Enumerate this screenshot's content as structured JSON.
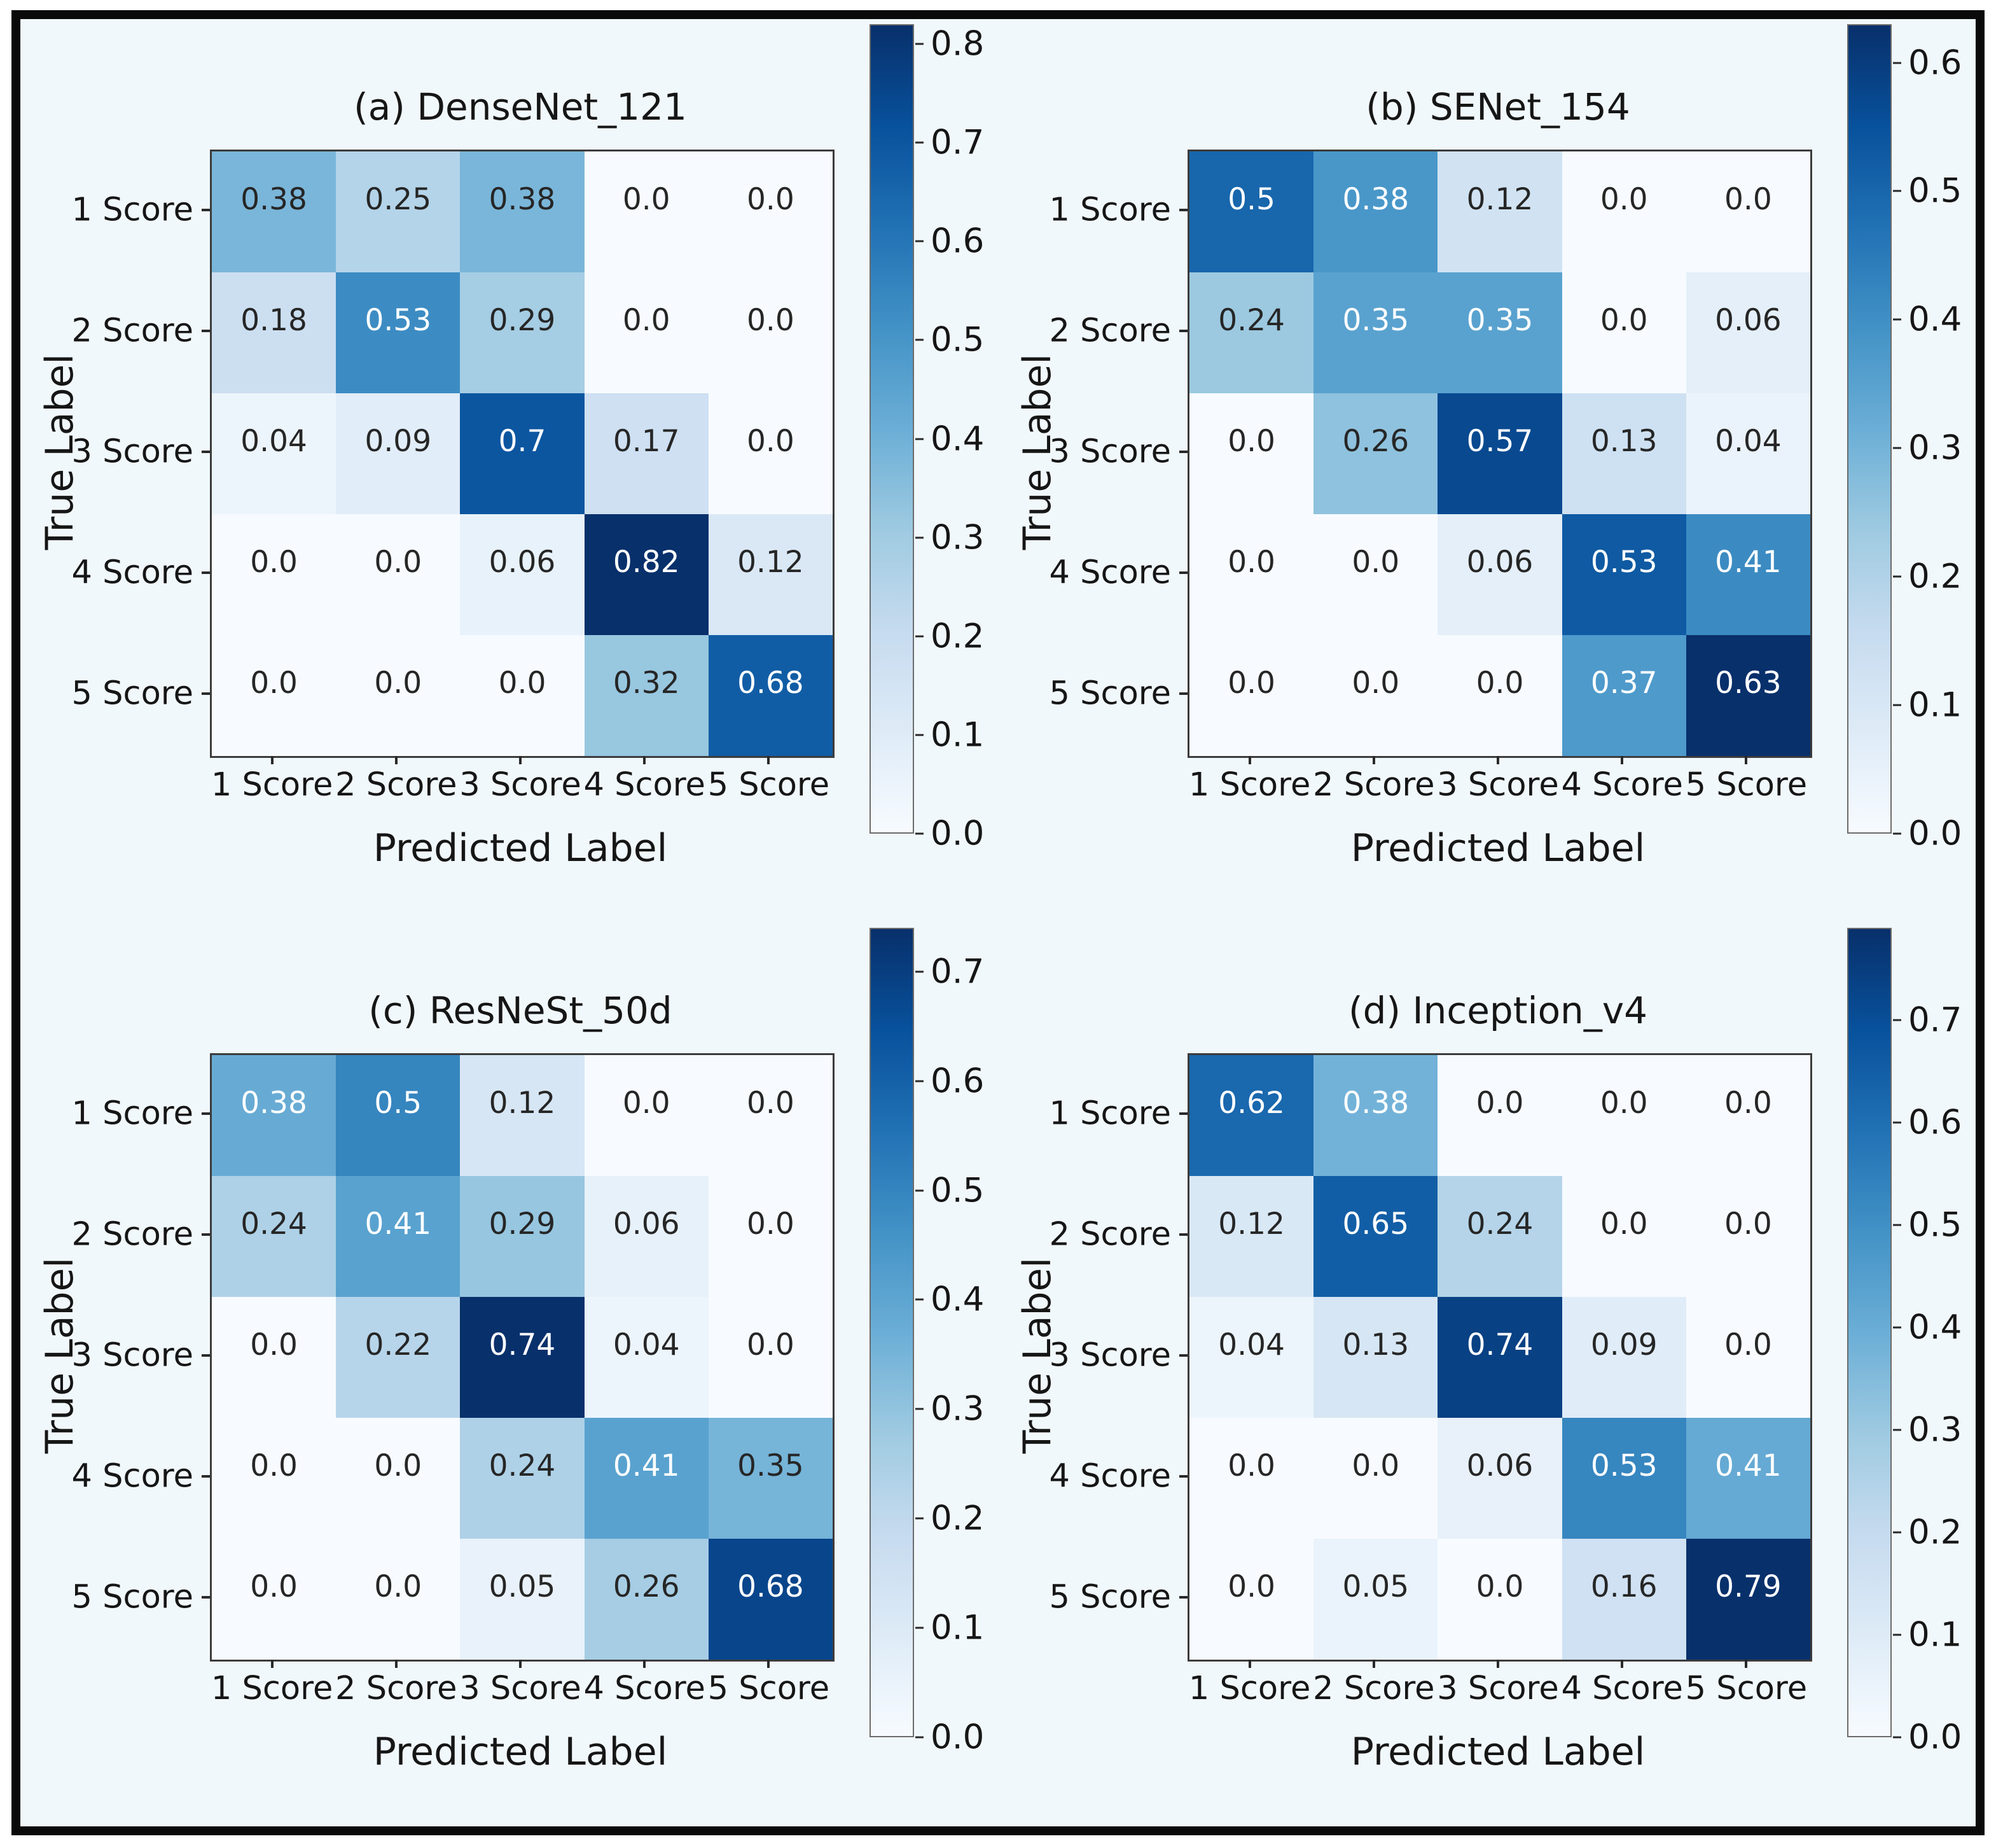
{
  "figure": {
    "background": "#f1f8fc",
    "outer_background": "#ffffff",
    "frame_color": "#0a0a0a",
    "colormap": {
      "name": "Blues",
      "anchors": [
        "#f7fbff",
        "#deebf7",
        "#c6dbef",
        "#9ecae1",
        "#6baed6",
        "#4292c6",
        "#2171b5",
        "#08519c",
        "#08306b"
      ]
    },
    "annotation_text_dark": "#262626",
    "annotation_text_light": "#ffffff"
  },
  "axes": {
    "xlabel": "Predicted Label",
    "ylabel": "True Label",
    "x_tick_labels": [
      "1 Score",
      "2 Score",
      "3 Score",
      "4 Score",
      "5 Score"
    ],
    "y_tick_labels": [
      "1 Score",
      "2 Score",
      "3 Score",
      "4 Score",
      "5 Score"
    ]
  },
  "chart_data": [
    {
      "type": "heatmap",
      "panel": "a",
      "title": "(a) DenseNet_121",
      "xlabel": "Predicted Label",
      "ylabel": "True Label",
      "categories_x": [
        "1 Score",
        "2 Score",
        "3 Score",
        "4 Score",
        "5 Score"
      ],
      "categories_y": [
        "1 Score",
        "2 Score",
        "3 Score",
        "4 Score",
        "5 Score"
      ],
      "values": [
        [
          0.38,
          0.25,
          0.38,
          0.0,
          0.0
        ],
        [
          0.18,
          0.53,
          0.29,
          0.0,
          0.0
        ],
        [
          0.04,
          0.09,
          0.7,
          0.17,
          0.0
        ],
        [
          0.0,
          0.0,
          0.06,
          0.82,
          0.12
        ],
        [
          0.0,
          0.0,
          0.0,
          0.32,
          0.68
        ]
      ],
      "vmin": 0.0,
      "vmax": 0.82,
      "colorbar_ticks": [
        0.0,
        0.1,
        0.2,
        0.3,
        0.4,
        0.5,
        0.6,
        0.7,
        0.8
      ],
      "colorbar_position": "right",
      "grid": false
    },
    {
      "type": "heatmap",
      "panel": "b",
      "title": "(b) SENet_154",
      "xlabel": "Predicted Label",
      "ylabel": "True Label",
      "categories_x": [
        "1 Score",
        "2 Score",
        "3 Score",
        "4 Score",
        "5 Score"
      ],
      "categories_y": [
        "1 Score",
        "2 Score",
        "3 Score",
        "4 Score",
        "5 Score"
      ],
      "values": [
        [
          0.5,
          0.38,
          0.12,
          0.0,
          0.0
        ],
        [
          0.24,
          0.35,
          0.35,
          0.0,
          0.06
        ],
        [
          0.0,
          0.26,
          0.57,
          0.13,
          0.04
        ],
        [
          0.0,
          0.0,
          0.06,
          0.53,
          0.41
        ],
        [
          0.0,
          0.0,
          0.0,
          0.37,
          0.63
        ]
      ],
      "vmin": 0.0,
      "vmax": 0.63,
      "colorbar_ticks": [
        0.0,
        0.1,
        0.2,
        0.3,
        0.4,
        0.5,
        0.6
      ],
      "colorbar_position": "right",
      "grid": false
    },
    {
      "type": "heatmap",
      "panel": "c",
      "title": "(c) ResNeSt_50d",
      "xlabel": "Predicted Label",
      "ylabel": "True Label",
      "categories_x": [
        "1 Score",
        "2 Score",
        "3 Score",
        "4 Score",
        "5 Score"
      ],
      "categories_y": [
        "1 Score",
        "2 Score",
        "3 Score",
        "4 Score",
        "5 Score"
      ],
      "values": [
        [
          0.38,
          0.5,
          0.12,
          0.0,
          0.0
        ],
        [
          0.24,
          0.41,
          0.29,
          0.06,
          0.0
        ],
        [
          0.0,
          0.22,
          0.74,
          0.04,
          0.0
        ],
        [
          0.0,
          0.0,
          0.24,
          0.41,
          0.35
        ],
        [
          0.0,
          0.0,
          0.05,
          0.26,
          0.68
        ]
      ],
      "vmin": 0.0,
      "vmax": 0.74,
      "colorbar_ticks": [
        0.0,
        0.1,
        0.2,
        0.3,
        0.4,
        0.5,
        0.6,
        0.7
      ],
      "colorbar_position": "right",
      "grid": false
    },
    {
      "type": "heatmap",
      "panel": "d",
      "title": "(d) Inception_v4",
      "xlabel": "Predicted Label",
      "ylabel": "True Label",
      "categories_x": [
        "1 Score",
        "2 Score",
        "3 Score",
        "4 Score",
        "5 Score"
      ],
      "categories_y": [
        "1 Score",
        "2 Score",
        "3 Score",
        "4 Score",
        "5 Score"
      ],
      "values": [
        [
          0.62,
          0.38,
          0.0,
          0.0,
          0.0
        ],
        [
          0.12,
          0.65,
          0.24,
          0.0,
          0.0
        ],
        [
          0.04,
          0.13,
          0.74,
          0.09,
          0.0
        ],
        [
          0.0,
          0.0,
          0.06,
          0.53,
          0.41
        ],
        [
          0.0,
          0.05,
          0.0,
          0.16,
          0.79
        ]
      ],
      "vmin": 0.0,
      "vmax": 0.79,
      "colorbar_ticks": [
        0.0,
        0.1,
        0.2,
        0.3,
        0.4,
        0.5,
        0.6,
        0.7
      ],
      "colorbar_position": "right",
      "grid": false
    }
  ]
}
